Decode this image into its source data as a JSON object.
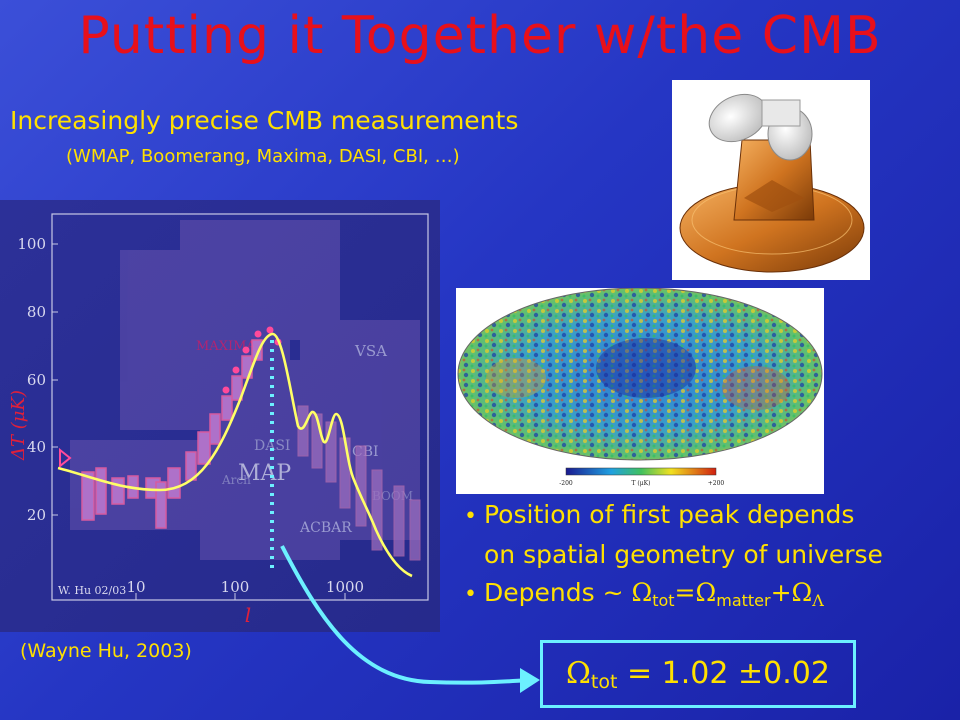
{
  "title": "Putting it Together w/the CMB",
  "subtitle": "Increasingly precise CMB measurements",
  "experiments": "(WMAP, Boomerang, Maxima, DASI, CBI, …)",
  "credit": "(Wayne Hu, 2003)",
  "plot": {
    "y_ticks": [
      "100",
      "80",
      "60",
      "40",
      "20"
    ],
    "x_ticks": [
      "10",
      "100",
      "1000"
    ],
    "ylabel": "ΔT (μK)",
    "xlabel": "l",
    "signature": "W. Hu 02/03",
    "labels": {
      "map": "MAP",
      "vsa": "VSA",
      "maxima": "MAXIMA",
      "dasi": "DASI",
      "cbi": "CBI",
      "acbar": "ACBAR",
      "arch": "Arch",
      "boom": "BOOM"
    }
  },
  "skymap": {
    "scale_min": "-200",
    "scale_label": "T (μK)",
    "scale_max": "+200"
  },
  "bullets": {
    "b1_line1": "Position of first peak depends",
    "b1_line2": "on spatial geometry of universe",
    "b2_prefix": "Depends ~ ",
    "omega": "Ω",
    "lambda": "Λ",
    "tot": "tot",
    "matter": "matter",
    "eq": "=",
    "plus": "+"
  },
  "result": {
    "omega": "Ω",
    "sub": "tot",
    "value": " = 1.02 ",
    "pm": "±",
    "err": "0.02"
  },
  "colors": {
    "title": "#e8101a",
    "text": "#ffe000",
    "box_border": "#6cf0ff",
    "curve": "#ffff66",
    "axis_text": "#e0203a"
  }
}
